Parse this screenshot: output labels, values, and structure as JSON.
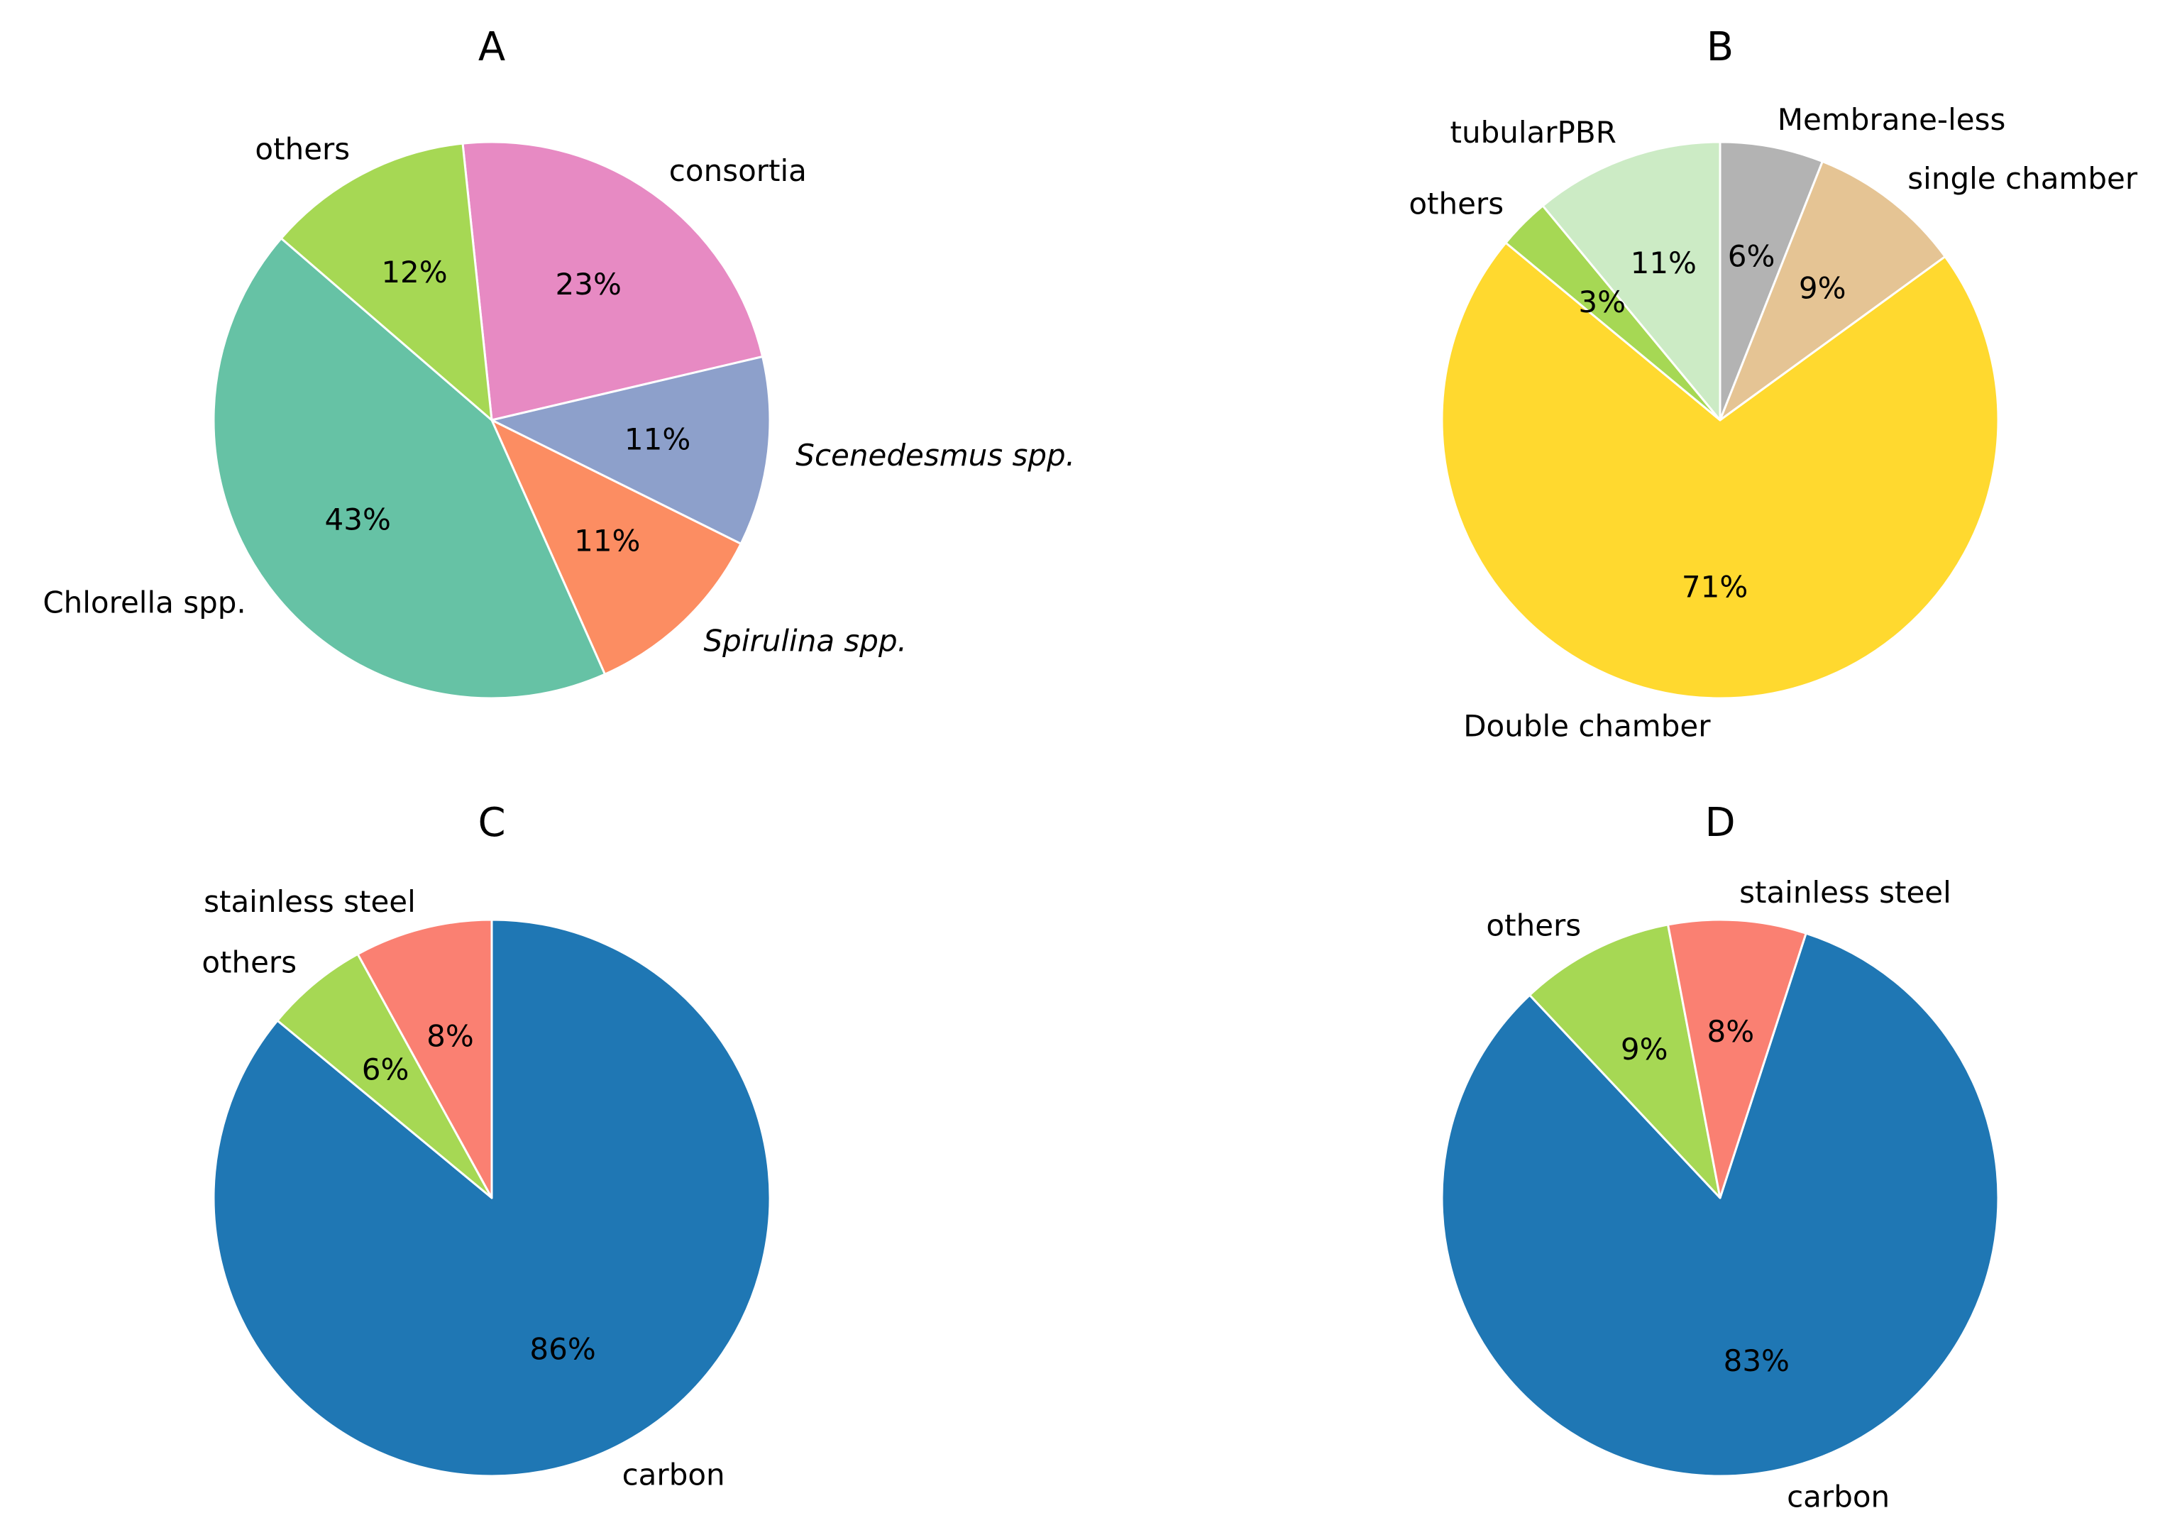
{
  "chart_data": [
    {
      "type": "pie",
      "title": "A",
      "start_angle_deg": 96,
      "direction": "clockwise",
      "slices": [
        {
          "label": "consortia",
          "value": 23,
          "pct_label": "23%",
          "color": "#e78ac3",
          "italic": false
        },
        {
          "label": "Scenedesmus spp.",
          "value": 11,
          "pct_label": "11%",
          "color": "#8da0cb",
          "italic": true
        },
        {
          "label": "Spirulina spp.",
          "value": 11,
          "pct_label": "11%",
          "color": "#fc8d62",
          "italic": true
        },
        {
          "label": "Chlorella spp.",
          "value": 43,
          "pct_label": "43%",
          "color": "#66c2a5",
          "italic": false
        },
        {
          "label": "others",
          "value": 12,
          "pct_label": "12%",
          "color": "#a6d854",
          "italic": false
        }
      ]
    },
    {
      "type": "pie",
      "title": "B",
      "start_angle_deg": 90,
      "direction": "clockwise",
      "slices": [
        {
          "label": "Membrane-less",
          "value": 6,
          "pct_label": "6%",
          "color": "#b3b3b3",
          "italic": false
        },
        {
          "label": "single chamber",
          "value": 9,
          "pct_label": "9%",
          "color": "#e5c494",
          "italic": false
        },
        {
          "label": "Double chamber",
          "value": 71,
          "pct_label": "71%",
          "color": "#ffd92f",
          "italic": false
        },
        {
          "label": "others",
          "value": 3,
          "pct_label": "3%",
          "color": "#a6d854",
          "italic": false
        },
        {
          "label": "tubularPBR",
          "value": 11,
          "pct_label": "11%",
          "color": "#ccebc5",
          "italic": false
        }
      ]
    },
    {
      "type": "pie",
      "title": "C",
      "start_angle_deg": 90,
      "direction": "clockwise",
      "slices": [
        {
          "label": "carbon",
          "value": 86,
          "pct_label": "86%",
          "color": "#1f77b4",
          "italic": false
        },
        {
          "label": "others",
          "value": 6,
          "pct_label": "6%",
          "color": "#a6d854",
          "italic": false
        },
        {
          "label": "stainless steel",
          "value": 8,
          "pct_label": "8%",
          "color": "#fa8072",
          "italic": false
        }
      ]
    },
    {
      "type": "pie",
      "title": "D",
      "start_angle_deg": 72,
      "direction": "clockwise",
      "slices": [
        {
          "label": "carbon",
          "value": 83,
          "pct_label": "83%",
          "color": "#1f77b4",
          "italic": false
        },
        {
          "label": "others",
          "value": 9,
          "pct_label": "9%",
          "color": "#a6d854",
          "italic": false
        },
        {
          "label": "stainless steel",
          "value": 8,
          "pct_label": "8%",
          "color": "#fa8072",
          "italic": false
        }
      ]
    }
  ]
}
